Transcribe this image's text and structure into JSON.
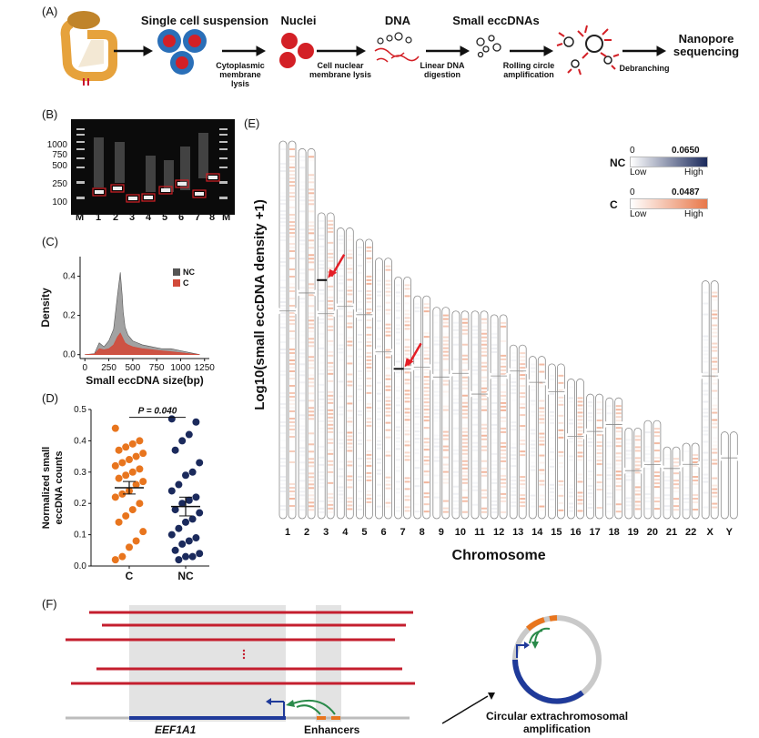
{
  "panel_labels": {
    "a": "(A)",
    "b": "(B)",
    "c": "(C)",
    "d": "(D)",
    "e": "(E)",
    "f": "(F)"
  },
  "panel_a": {
    "steps": [
      "Single cell suspension",
      "Nuclei",
      "DNA",
      "Small eccDNAs",
      "Nanopore sequencing"
    ],
    "arrow_labels": [
      "Cytoplasmic membrane lysis",
      "Cell nuclear membrane lysis",
      "Linear DNA digestion",
      "Rolling circle amplification",
      "Debranching"
    ]
  },
  "panel_b": {
    "size_labels": [
      "1000",
      "750",
      "500",
      "250",
      "100"
    ],
    "lane_labels": [
      "M",
      "1",
      "2",
      "3",
      "4",
      "5",
      "6",
      "7",
      "8",
      "M"
    ]
  },
  "panel_d": {
    "p_value": "P = 0.040"
  },
  "panel_e": {
    "legend": {
      "nc_label": "NC",
      "nc_min": "0",
      "nc_max": "0.0650",
      "nc_low": "Low",
      "nc_high": "High",
      "nc_color": "#1b2a5c",
      "c_label": "C",
      "c_min": "0",
      "c_max": "0.0487",
      "c_low": "Low",
      "c_high": "High",
      "c_color": "#e8784a"
    }
  },
  "panel_f": {
    "gene": "EEF1A1",
    "enhancers": "Enhancers",
    "circular_label": "Circular extrachromosomal amplification"
  },
  "chart_data": [
    {
      "type": "area",
      "xlabel": "Small eccDNA size(bp)",
      "ylabel": "Density",
      "xticks": [
        0,
        250,
        500,
        750,
        1000,
        1250
      ],
      "yticks": [
        0.0,
        0.2,
        0.4
      ],
      "xlim": [
        -50,
        1300
      ],
      "ylim": [
        -0.02,
        0.5
      ],
      "legend_position": "top-right",
      "series": [
        {
          "name": "NC",
          "color": "#555555",
          "x": [
            0,
            100,
            150,
            200,
            250,
            300,
            340,
            370,
            390,
            400,
            420,
            450,
            500,
            550,
            600,
            700,
            800,
            900,
            1000,
            1100,
            1200
          ],
          "y": [
            0.0,
            0.005,
            0.06,
            0.04,
            0.07,
            0.13,
            0.3,
            0.42,
            0.3,
            0.22,
            0.14,
            0.1,
            0.07,
            0.06,
            0.05,
            0.04,
            0.03,
            0.03,
            0.02,
            0.01,
            0.0
          ]
        },
        {
          "name": "C",
          "color": "#d24a3a",
          "x": [
            0,
            100,
            150,
            200,
            250,
            300,
            340,
            370,
            390,
            400,
            420,
            450,
            500,
            550,
            600,
            700,
            800,
            900,
            1000,
            1100,
            1200
          ],
          "y": [
            0.0,
            0.003,
            0.03,
            0.025,
            0.03,
            0.05,
            0.09,
            0.11,
            0.09,
            0.08,
            0.06,
            0.05,
            0.04,
            0.035,
            0.03,
            0.025,
            0.02,
            0.015,
            0.01,
            0.005,
            0.0
          ]
        }
      ]
    },
    {
      "type": "scatter",
      "ylabel": "Normalized small eccDNA counts",
      "categories": [
        "C",
        "NC"
      ],
      "yticks": [
        0.0,
        0.1,
        0.2,
        0.3,
        0.4,
        0.5
      ],
      "ylim": [
        0,
        0.5
      ],
      "series": [
        {
          "name": "C",
          "color": "#e8751e",
          "mean": 0.25,
          "sem": 0.02,
          "values": [
            0.44,
            0.4,
            0.39,
            0.38,
            0.37,
            0.36,
            0.35,
            0.34,
            0.33,
            0.32,
            0.31,
            0.3,
            0.29,
            0.28,
            0.27,
            0.26,
            0.24,
            0.23,
            0.22,
            0.2,
            0.18,
            0.16,
            0.14,
            0.11,
            0.08,
            0.06,
            0.03,
            0.02
          ]
        },
        {
          "name": "NC",
          "color": "#1b2a5c",
          "mean": 0.19,
          "sem": 0.03,
          "values": [
            0.47,
            0.46,
            0.42,
            0.4,
            0.37,
            0.33,
            0.3,
            0.29,
            0.26,
            0.24,
            0.22,
            0.21,
            0.2,
            0.18,
            0.17,
            0.15,
            0.14,
            0.12,
            0.1,
            0.09,
            0.08,
            0.07,
            0.05,
            0.04,
            0.03,
            0.03,
            0.02
          ]
        }
      ]
    },
    {
      "type": "heatmap",
      "ylabel": "Log10(small eccDNA density +1)",
      "xlabel": "Chromosome",
      "categories": [
        "1",
        "2",
        "3",
        "4",
        "5",
        "6",
        "7",
        "8",
        "9",
        "10",
        "11",
        "12",
        "13",
        "14",
        "15",
        "16",
        "17",
        "18",
        "19",
        "20",
        "21",
        "22",
        "X",
        "Y"
      ],
      "relative_lengths": [
        1.0,
        0.98,
        0.81,
        0.77,
        0.74,
        0.69,
        0.64,
        0.59,
        0.56,
        0.55,
        0.55,
        0.54,
        0.46,
        0.43,
        0.41,
        0.37,
        0.33,
        0.32,
        0.24,
        0.26,
        0.19,
        0.2,
        0.63,
        0.23
      ]
    }
  ]
}
